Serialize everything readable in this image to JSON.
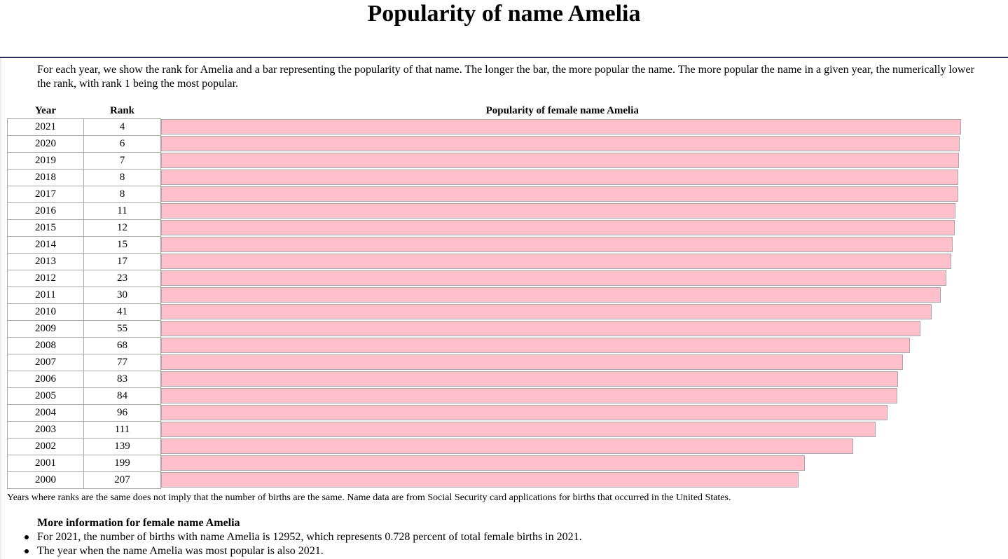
{
  "page": {
    "title": "Popularity of name Amelia",
    "intro": "For each year, we show the rank for Amelia and a bar representing the popularity of that name. The longer the bar, the more popular the name. The more popular the name in a given year, the numerically lower the rank, with rank 1 being the most popular.",
    "footnote": "Years where ranks are the same does not imply that the number of births are the same. Name data are from Social Security card applications for births that occurred in the United States.",
    "more_title": "More information for female name Amelia",
    "more_items": [
      "For 2021, the number of births with name Amelia is 12952, which represents 0.728 percent of total female births in 2021.",
      "The year when the name Amelia was most popular is also 2021."
    ]
  },
  "chart_data": {
    "type": "table",
    "columns": [
      "Year",
      "Rank",
      "Popularity of female name Amelia"
    ],
    "max_rank": 1000,
    "rows": [
      {
        "year": "2021",
        "rank": 4
      },
      {
        "year": "2020",
        "rank": 6
      },
      {
        "year": "2019",
        "rank": 7
      },
      {
        "year": "2018",
        "rank": 8
      },
      {
        "year": "2017",
        "rank": 8
      },
      {
        "year": "2016",
        "rank": 11
      },
      {
        "year": "2015",
        "rank": 12
      },
      {
        "year": "2014",
        "rank": 15
      },
      {
        "year": "2013",
        "rank": 17
      },
      {
        "year": "2012",
        "rank": 23
      },
      {
        "year": "2011",
        "rank": 30
      },
      {
        "year": "2010",
        "rank": 41
      },
      {
        "year": "2009",
        "rank": 55
      },
      {
        "year": "2008",
        "rank": 68
      },
      {
        "year": "2007",
        "rank": 77
      },
      {
        "year": "2006",
        "rank": 83
      },
      {
        "year": "2005",
        "rank": 84
      },
      {
        "year": "2004",
        "rank": 96
      },
      {
        "year": "2003",
        "rank": 111
      },
      {
        "year": "2002",
        "rank": 139
      },
      {
        "year": "2001",
        "rank": 199
      },
      {
        "year": "2000",
        "rank": 207
      }
    ],
    "colors": {
      "bar": "#ffc0cb",
      "border": "#a9a9a9"
    }
  }
}
